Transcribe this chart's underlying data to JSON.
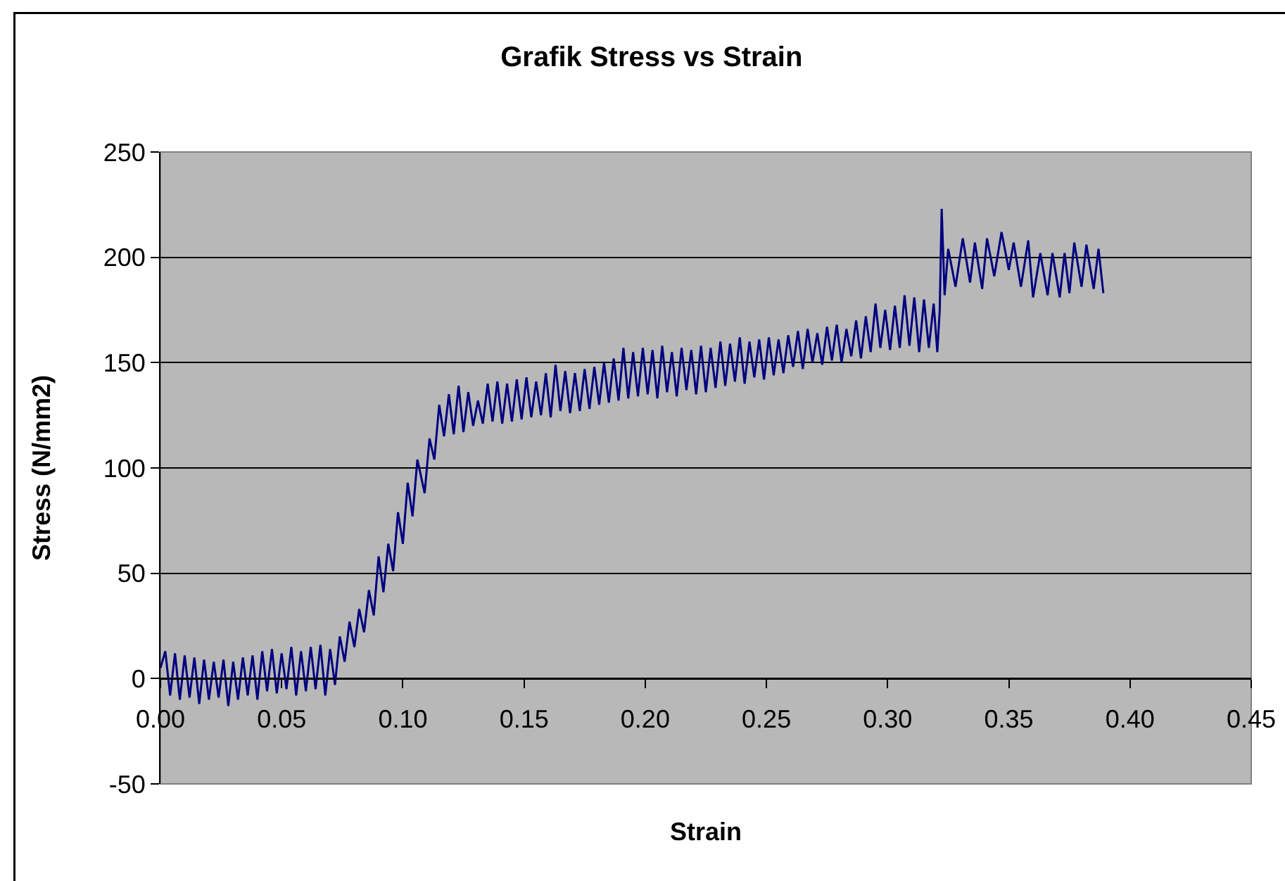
{
  "chart_data": {
    "type": "line",
    "title": "Grafik Stress vs Strain",
    "xlabel": "Strain",
    "ylabel": "Stress (N/mm2)",
    "xlim": [
      0,
      0.45
    ],
    "ylim": [
      -50,
      250
    ],
    "xticks": [
      {
        "value": 0,
        "label": "0.00"
      },
      {
        "value": 0.05,
        "label": "0.05"
      },
      {
        "value": 0.1,
        "label": "0.10"
      },
      {
        "value": 0.15,
        "label": "0.15"
      },
      {
        "value": 0.2,
        "label": "0.20"
      },
      {
        "value": 0.25,
        "label": "0.25"
      },
      {
        "value": 0.3,
        "label": "0.30"
      },
      {
        "value": 0.35,
        "label": "0.35"
      },
      {
        "value": 0.4,
        "label": "0.40"
      },
      {
        "value": 0.45,
        "label": "0.45"
      }
    ],
    "yticks": [
      -50,
      0,
      50,
      100,
      150,
      200,
      250
    ],
    "grid": "y",
    "x": [
      0.0,
      0.002,
      0.004,
      0.006,
      0.008,
      0.01,
      0.012,
      0.014,
      0.016,
      0.018,
      0.02,
      0.022,
      0.024,
      0.026,
      0.028,
      0.03,
      0.032,
      0.034,
      0.036,
      0.038,
      0.04,
      0.042,
      0.044,
      0.046,
      0.048,
      0.05,
      0.052,
      0.054,
      0.056,
      0.058,
      0.06,
      0.062,
      0.064,
      0.066,
      0.068,
      0.07,
      0.072,
      0.074,
      0.076,
      0.078,
      0.08,
      0.082,
      0.084,
      0.086,
      0.088,
      0.09,
      0.092,
      0.094,
      0.096,
      0.098,
      0.1,
      0.102,
      0.104,
      0.106,
      0.109,
      0.111,
      0.113,
      0.115,
      0.117,
      0.119,
      0.121,
      0.123,
      0.125,
      0.127,
      0.129,
      0.131,
      0.133,
      0.135,
      0.137,
      0.139,
      0.141,
      0.143,
      0.145,
      0.147,
      0.149,
      0.151,
      0.153,
      0.155,
      0.157,
      0.159,
      0.161,
      0.163,
      0.165,
      0.167,
      0.169,
      0.171,
      0.173,
      0.175,
      0.177,
      0.179,
      0.181,
      0.183,
      0.185,
      0.187,
      0.189,
      0.191,
      0.193,
      0.195,
      0.197,
      0.199,
      0.201,
      0.203,
      0.205,
      0.207,
      0.209,
      0.211,
      0.213,
      0.215,
      0.217,
      0.219,
      0.221,
      0.223,
      0.225,
      0.227,
      0.229,
      0.231,
      0.233,
      0.235,
      0.237,
      0.239,
      0.241,
      0.243,
      0.245,
      0.247,
      0.249,
      0.251,
      0.253,
      0.255,
      0.257,
      0.259,
      0.261,
      0.263,
      0.265,
      0.267,
      0.269,
      0.271,
      0.273,
      0.275,
      0.277,
      0.279,
      0.281,
      0.283,
      0.285,
      0.287,
      0.289,
      0.291,
      0.293,
      0.295,
      0.297,
      0.299,
      0.301,
      0.303,
      0.305,
      0.307,
      0.309,
      0.311,
      0.313,
      0.315,
      0.317,
      0.319,
      0.3205,
      0.3215,
      0.3223,
      0.3235,
      0.325,
      0.328,
      0.331,
      0.334,
      0.336,
      0.339,
      0.341,
      0.344,
      0.347,
      0.35,
      0.352,
      0.355,
      0.358,
      0.36,
      0.363,
      0.366,
      0.368,
      0.371,
      0.373,
      0.375,
      0.377,
      0.38,
      0.382,
      0.385,
      0.387,
      0.389
    ],
    "series": [
      {
        "color": "#000080",
        "values": [
          5,
          13,
          -8,
          12,
          -10,
          11,
          -9,
          10,
          -12,
          9,
          -10,
          8,
          -9,
          9,
          -13,
          8,
          -10,
          10,
          -8,
          11,
          -10,
          13,
          -6,
          14,
          -7,
          12,
          -5,
          15,
          -8,
          13,
          -6,
          15,
          -5,
          16,
          -8,
          14,
          -3,
          20,
          8,
          27,
          15,
          33,
          22,
          42,
          30,
          58,
          41,
          64,
          51,
          79,
          64,
          93,
          77,
          104,
          88,
          114,
          104,
          130,
          115,
          135,
          116,
          139,
          117,
          136,
          120,
          132,
          121,
          140,
          122,
          141,
          121,
          140,
          122,
          142,
          123,
          143,
          124,
          141,
          125,
          145,
          124,
          149,
          127,
          146,
          126,
          145,
          127,
          147,
          128,
          148,
          130,
          150,
          131,
          152,
          132,
          157,
          133,
          155,
          134,
          157,
          135,
          156,
          133,
          158,
          136,
          155,
          134,
          157,
          137,
          156,
          135,
          158,
          136,
          157,
          138,
          160,
          139,
          159,
          141,
          162,
          140,
          160,
          143,
          161,
          142,
          162,
          144,
          161,
          145,
          163,
          148,
          165,
          147,
          166,
          150,
          164,
          149,
          167,
          151,
          168,
          150,
          166,
          153,
          170,
          152,
          172,
          155,
          178,
          157,
          175,
          156,
          177,
          157,
          182,
          158,
          181,
          155,
          180,
          157,
          178,
          155,
          175,
          223,
          182,
          204,
          186,
          209,
          188,
          207,
          185,
          209,
          191,
          212,
          194,
          207,
          186,
          208,
          181,
          202,
          182,
          202,
          181,
          202,
          183,
          207,
          186,
          206,
          185,
          204,
          183
        ]
      }
    ]
  }
}
